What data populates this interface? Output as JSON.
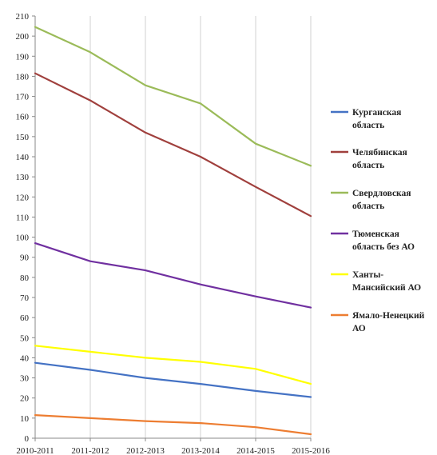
{
  "chart_data": {
    "type": "line",
    "title": "",
    "xlabel": "",
    "ylabel": "",
    "ylim": [
      0,
      210
    ],
    "y_ticks": [
      0,
      10,
      20,
      30,
      40,
      50,
      60,
      70,
      80,
      90,
      100,
      110,
      120,
      130,
      140,
      150,
      160,
      170,
      180,
      190,
      200,
      210
    ],
    "grid": "vertical",
    "legend_position": "right",
    "categories": [
      "2010-2011",
      "2011-2012",
      "2012-2013",
      "2013-2014",
      "2014-2015",
      "2015-2016"
    ],
    "series": [
      {
        "name": "Курганская область",
        "color": "#4472c4",
        "values": [
          37.5,
          34,
          30,
          27,
          23.5,
          20.5
        ]
      },
      {
        "name": "Челябинская область",
        "color": "#a0403d",
        "values": [
          181.5,
          168,
          152,
          140,
          125,
          110.5
        ]
      },
      {
        "name": "Свердловская область",
        "color": "#9bbb59",
        "values": [
          204.5,
          192,
          175.5,
          166.5,
          146.5,
          135.5
        ]
      },
      {
        "name": "Тюменская область без АО",
        "color": "#7030a0",
        "values": [
          97,
          88,
          83.5,
          76.5,
          70.5,
          65
        ]
      },
      {
        "name": "Ханты-Мансийский АО",
        "color": "#ffff00",
        "values": [
          46,
          43,
          40,
          38,
          34.5,
          27
        ]
      },
      {
        "name": "Ямало-Ненецкий АО",
        "color": "#ed7d31",
        "values": [
          11.5,
          10,
          8.5,
          7.5,
          5.5,
          2
        ]
      }
    ],
    "legend_lines": [
      [
        "Курганская",
        "область"
      ],
      [
        "Челябинская",
        "область"
      ],
      [
        "Свердловская",
        "область"
      ],
      [
        "Тюменская",
        "область без АО"
      ],
      [
        "Ханты-",
        "Мансийский АО"
      ],
      [
        "Ямало-Ненецкий",
        "АО"
      ]
    ]
  }
}
